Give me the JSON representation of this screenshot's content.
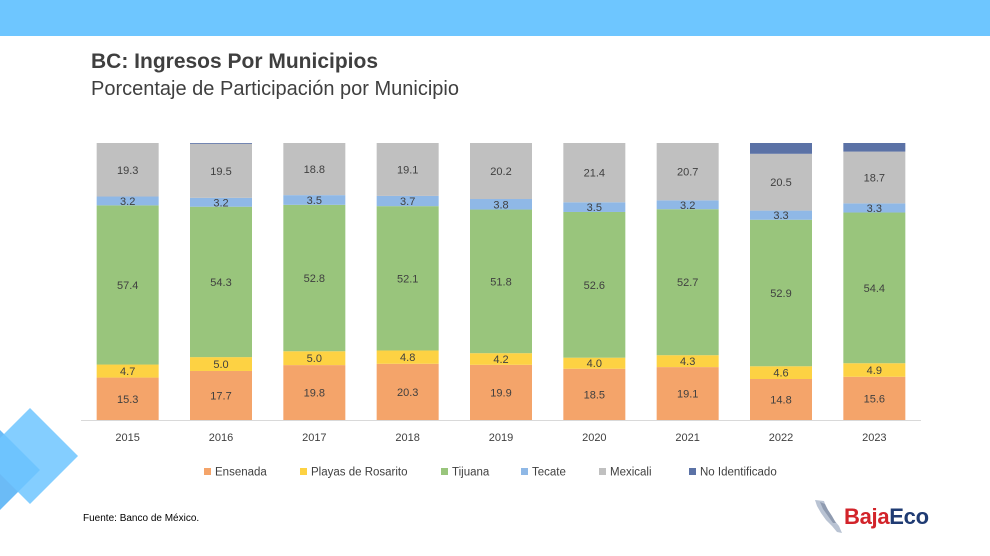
{
  "header": {
    "title": "BC: Ingresos Por Municipios",
    "subtitle": "Porcentaje de Participación por Municipio",
    "band_color": "#6ec6ff"
  },
  "footer": {
    "source": "Fuente: Banco de México.",
    "logo_part1": "Baja",
    "logo_part2": "Eco"
  },
  "chart_data": {
    "type": "bar",
    "stacked": true,
    "percent": true,
    "categories": [
      "2015",
      "2016",
      "2017",
      "2018",
      "2019",
      "2020",
      "2021",
      "2022",
      "2023"
    ],
    "ylim": [
      0,
      100
    ],
    "grid": false,
    "legend_position": "bottom",
    "series": [
      {
        "name": "Ensenada",
        "color": "#f4a46a",
        "values": [
          15.3,
          17.7,
          19.8,
          20.3,
          19.9,
          18.5,
          19.1,
          14.8,
          15.6
        ]
      },
      {
        "name": "Playas de Rosarito",
        "color": "#fdd243",
        "values": [
          4.7,
          5.0,
          5.0,
          4.8,
          4.2,
          4.0,
          4.3,
          4.6,
          4.9
        ]
      },
      {
        "name": "Tijuana",
        "color": "#99c57c",
        "values": [
          57.4,
          54.3,
          52.8,
          52.1,
          51.8,
          52.6,
          52.7,
          52.9,
          54.4
        ]
      },
      {
        "name": "Tecate",
        "color": "#8fb8e6",
        "values": [
          3.2,
          3.2,
          3.5,
          3.7,
          3.8,
          3.5,
          3.2,
          3.3,
          3.3
        ]
      },
      {
        "name": "Mexicali",
        "color": "#c0c0c0",
        "values": [
          19.3,
          19.5,
          18.8,
          19.1,
          20.2,
          21.4,
          20.7,
          20.5,
          18.7
        ]
      },
      {
        "name": "No Identificado",
        "color": "#5b72a6",
        "values": [
          0.0,
          0.3,
          0.0,
          0.0,
          0.0,
          0.0,
          0.0,
          3.9,
          3.1
        ]
      }
    ]
  }
}
